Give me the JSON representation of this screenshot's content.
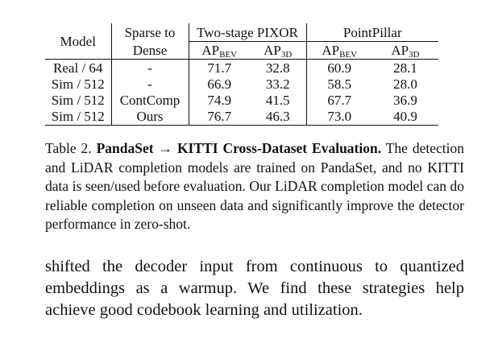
{
  "table": {
    "headers": {
      "model": "Model",
      "sparse_line1": "Sparse to",
      "sparse_line2": "Dense",
      "group1": "Two-stage PIXOR",
      "group2": "PointPillar",
      "ap": "AP",
      "sub_bev": "BEV",
      "sub_3d": "3D"
    },
    "rows": [
      {
        "model": "Real / 64",
        "sparse": "-",
        "pixor_bev": "71.7",
        "pixor_3d": "32.8",
        "pp_bev": "60.9",
        "pp_3d": "28.1"
      },
      {
        "model": "Sim / 512",
        "sparse": "-",
        "pixor_bev": "66.9",
        "pixor_3d": "33.2",
        "pp_bev": "58.5",
        "pp_3d": "28.0"
      },
      {
        "model": "Sim / 512",
        "sparse": "ContComp",
        "pixor_bev": "74.9",
        "pixor_3d": "41.5",
        "pp_bev": "67.7",
        "pp_3d": "36.9"
      },
      {
        "model": "Sim / 512",
        "sparse": "Ours",
        "pixor_bev": "76.7",
        "pixor_3d": "46.3",
        "pp_bev": "73.0",
        "pp_3d": "40.9"
      }
    ]
  },
  "caption": {
    "label": "Table 2.",
    "title": "PandaSet → KITTI Cross-Dataset Evaluation.",
    "text": "The detection and LiDAR completion models are trained on PandaSet, and no KITTI data is seen/used before evaluation. Our LiDAR completion model can do reliable completion on unseen data and significantly improve the detector performance in zero-shot."
  },
  "body_text": "shifted the decoder input from continuous to quantized embeddings as a warmup. We find these strategies help achieve good codebook learning and utilization."
}
